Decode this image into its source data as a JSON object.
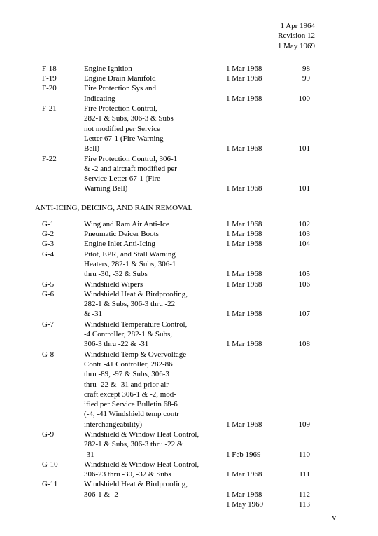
{
  "header": {
    "date_top": "1 Apr 1964",
    "revision": "Revision 12",
    "date_bottom": "1 May 1969"
  },
  "section_f": [
    {
      "code": "F-18",
      "desc": [
        "Engine Ignition"
      ],
      "date": "1 Mar 1968",
      "page": "98"
    },
    {
      "code": "F-19",
      "desc": [
        "Engine Drain Manifold"
      ],
      "date": "1 Mar 1968",
      "page": "99"
    },
    {
      "code": "F-20",
      "desc": [
        "Fire Protection Sys and",
        "Indicating"
      ],
      "date": "1 Mar 1968",
      "page": "100"
    },
    {
      "code": "F-21",
      "desc": [
        "Fire Protection Control,",
        "282-1 & Subs, 306-3 & Subs",
        "not modified per Service",
        "Letter 67-1 (Fire Warning",
        "Bell)"
      ],
      "date": "1 Mar 1968",
      "page": "101"
    },
    {
      "code": "F-22",
      "desc": [
        "Fire Protection Control, 306-1",
        "& -2 and aircraft modified per",
        "Service Letter 67-1 (Fire",
        "Warning Bell)"
      ],
      "date": "1 Mar 1968",
      "page": "101"
    }
  ],
  "section_g_title": "ANTI-ICING, DEICING, AND RAIN REMOVAL",
  "section_g": [
    {
      "code": "G-1",
      "desc": [
        "Wing and Ram Air Anti-Ice"
      ],
      "date": "1 Mar 1968",
      "page": "102"
    },
    {
      "code": "G-2",
      "desc": [
        "Pneumatic Deicer Boots"
      ],
      "date": "1 Mar 1968",
      "page": "103"
    },
    {
      "code": "G-3",
      "desc": [
        "Engine Inlet Anti-Icing"
      ],
      "date": "1 Mar 1968",
      "page": "104"
    },
    {
      "code": "G-4",
      "desc": [
        "Pitot, EPR, and Stall Warning",
        "Heaters, 282-1 & Subs, 306-1",
        "thru -30, -32 & Subs"
      ],
      "date": "1 Mar 1968",
      "page": "105"
    },
    {
      "code": "G-5",
      "desc": [
        "Windshield Wipers"
      ],
      "date": "1 Mar 1968",
      "page": "106"
    },
    {
      "code": "G-6",
      "desc": [
        "Windshield Heat & Birdproofing,",
        "282-1 & Subs, 306-3 thru -22",
        "& -31"
      ],
      "date": "1 Mar 1968",
      "page": "107"
    },
    {
      "code": "G-7",
      "desc": [
        "Windshield Temperature Control,",
        "-4 Controller, 282-1 & Subs,",
        "306-3 thru -22 & -31"
      ],
      "date": "1 Mar 1968",
      "page": "108"
    },
    {
      "code": "G-8",
      "desc": [
        "Windshield Temp & Overvoltage",
        "Contr -41 Controller, 282-86",
        "thru -89, -97 & Subs, 306-3",
        "thru -22 & -31 and prior air-",
        "craft except 306-1 & -2, mod-",
        "ified per Service Bulletin 68-6",
        "(-4, -41 Windshield temp contr",
        "interchangeability)"
      ],
      "date": "1 Mar 1968",
      "page": "109"
    },
    {
      "code": "G-9",
      "desc": [
        "Windshield & Window Heat Control,",
        "282-1 & Subs, 306-3 thru -22 &",
        "-31"
      ],
      "date": "1 Feb 1969",
      "page": "110"
    },
    {
      "code": "G-10",
      "desc": [
        "Windshield & Window Heat Control,",
        "306-23 thru -30, -32 & Subs"
      ],
      "date": "1 Mar 1968",
      "page": "111"
    },
    {
      "code": "G-11",
      "desc": [
        "Windshield Heat & Birdproofing,",
        "306-1 & -2"
      ],
      "date": "1 Mar 1968",
      "page": "112",
      "date2": "1 May 1969",
      "page2": "113"
    }
  ],
  "page_number": "v"
}
